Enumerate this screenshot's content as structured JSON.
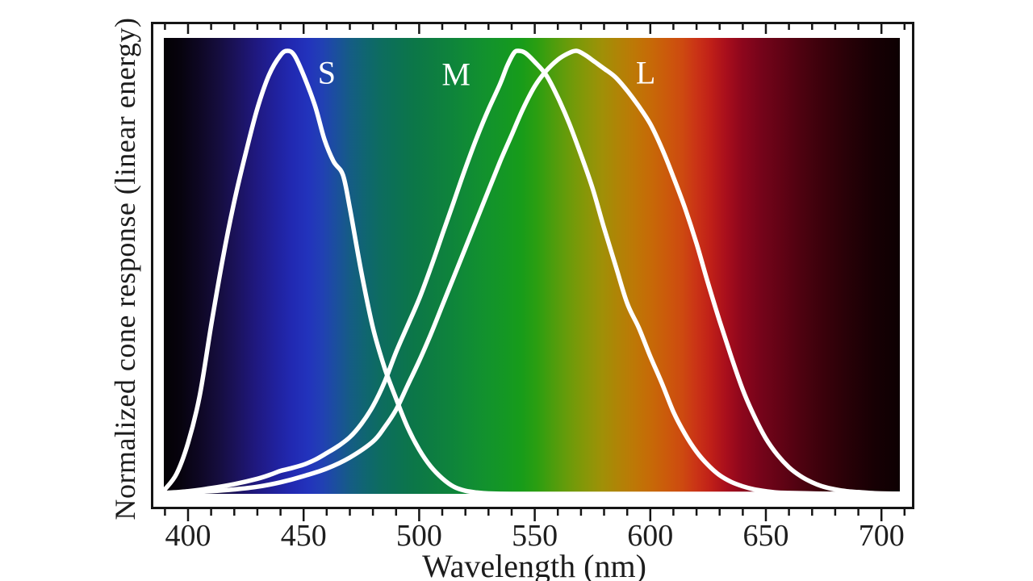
{
  "figure": {
    "background": "#ffffff",
    "frame_color": "#151515",
    "tick_color": "#151515",
    "curve_color": "#ffffff",
    "text_color": "#1c1c1c"
  },
  "chart_data": {
    "type": "line",
    "title": "",
    "xlabel": "Wavelength (nm)",
    "ylabel": "Normalized cone response (linear energy)",
    "xlim": [
      384,
      714
    ],
    "ylim": [
      0,
      1.1
    ],
    "grid": false,
    "legend_position": "inline-curve-labels",
    "spectrum_range_nm": [
      389,
      708
    ],
    "x_major_ticks": [
      400,
      450,
      500,
      550,
      600,
      650,
      700
    ],
    "x_minor_tick_step": 10,
    "x_minor_tick_range": [
      390,
      710
    ],
    "series": [
      {
        "name": "S",
        "points": [
          [
            390,
            0.01
          ],
          [
            395,
            0.045
          ],
          [
            400,
            0.115
          ],
          [
            405,
            0.22
          ],
          [
            410,
            0.38
          ],
          [
            415,
            0.53
          ],
          [
            420,
            0.66
          ],
          [
            425,
            0.77
          ],
          [
            430,
            0.87
          ],
          [
            435,
            0.945
          ],
          [
            440,
            0.99
          ],
          [
            443,
            1.0
          ],
          [
            446,
            0.99
          ],
          [
            450,
            0.945
          ],
          [
            455,
            0.875
          ],
          [
            459,
            0.8
          ],
          [
            463,
            0.75
          ],
          [
            467,
            0.72
          ],
          [
            470,
            0.645
          ],
          [
            475,
            0.5
          ],
          [
            480,
            0.375
          ],
          [
            485,
            0.285
          ],
          [
            490,
            0.215
          ],
          [
            495,
            0.15
          ],
          [
            500,
            0.1
          ],
          [
            505,
            0.062
          ],
          [
            510,
            0.035
          ],
          [
            515,
            0.016
          ],
          [
            520,
            0.007
          ],
          [
            525,
            0.003
          ],
          [
            530,
            0.001
          ],
          [
            540,
            0
          ],
          [
            560,
            0
          ],
          [
            580,
            0
          ],
          [
            600,
            0
          ],
          [
            620,
            0
          ],
          [
            640,
            0
          ],
          [
            660,
            0
          ],
          [
            680,
            0
          ],
          [
            700,
            0
          ],
          [
            710,
            0
          ]
        ]
      },
      {
        "name": "M",
        "points": [
          [
            390,
            0.002
          ],
          [
            400,
            0.006
          ],
          [
            410,
            0.013
          ],
          [
            420,
            0.022
          ],
          [
            430,
            0.034
          ],
          [
            436,
            0.044
          ],
          [
            440,
            0.052
          ],
          [
            444,
            0.057
          ],
          [
            450,
            0.066
          ],
          [
            455,
            0.077
          ],
          [
            460,
            0.092
          ],
          [
            465,
            0.108
          ],
          [
            470,
            0.128
          ],
          [
            475,
            0.158
          ],
          [
            480,
            0.198
          ],
          [
            485,
            0.252
          ],
          [
            490,
            0.32
          ],
          [
            495,
            0.38
          ],
          [
            500,
            0.44
          ],
          [
            505,
            0.51
          ],
          [
            510,
            0.585
          ],
          [
            515,
            0.66
          ],
          [
            520,
            0.735
          ],
          [
            525,
            0.805
          ],
          [
            530,
            0.868
          ],
          [
            535,
            0.925
          ],
          [
            538,
            0.965
          ],
          [
            541,
            0.995
          ],
          [
            543,
            1.0
          ],
          [
            546,
            0.995
          ],
          [
            550,
            0.975
          ],
          [
            555,
            0.945
          ],
          [
            560,
            0.895
          ],
          [
            565,
            0.835
          ],
          [
            570,
            0.765
          ],
          [
            575,
            0.69
          ],
          [
            580,
            0.6
          ],
          [
            585,
            0.515
          ],
          [
            590,
            0.43
          ],
          [
            595,
            0.375
          ],
          [
            600,
            0.31
          ],
          [
            605,
            0.25
          ],
          [
            610,
            0.185
          ],
          [
            615,
            0.135
          ],
          [
            620,
            0.095
          ],
          [
            625,
            0.065
          ],
          [
            630,
            0.042
          ],
          [
            635,
            0.027
          ],
          [
            640,
            0.017
          ],
          [
            645,
            0.01
          ],
          [
            650,
            0.006
          ],
          [
            655,
            0.003
          ],
          [
            660,
            0.002
          ],
          [
            670,
            0.001
          ],
          [
            680,
            0
          ],
          [
            695,
            0
          ],
          [
            710,
            0
          ]
        ]
      },
      {
        "name": "L",
        "points": [
          [
            390,
            0.001
          ],
          [
            400,
            0.003
          ],
          [
            410,
            0.006
          ],
          [
            420,
            0.01
          ],
          [
            430,
            0.016
          ],
          [
            440,
            0.026
          ],
          [
            450,
            0.04
          ],
          [
            460,
            0.057
          ],
          [
            470,
            0.082
          ],
          [
            480,
            0.118
          ],
          [
            485,
            0.15
          ],
          [
            490,
            0.19
          ],
          [
            495,
            0.245
          ],
          [
            500,
            0.3
          ],
          [
            505,
            0.36
          ],
          [
            510,
            0.425
          ],
          [
            515,
            0.49
          ],
          [
            520,
            0.555
          ],
          [
            525,
            0.62
          ],
          [
            530,
            0.685
          ],
          [
            535,
            0.75
          ],
          [
            540,
            0.81
          ],
          [
            545,
            0.87
          ],
          [
            550,
            0.92
          ],
          [
            555,
            0.955
          ],
          [
            560,
            0.98
          ],
          [
            564,
            0.993
          ],
          [
            568,
            1.0
          ],
          [
            572,
            0.99
          ],
          [
            576,
            0.975
          ],
          [
            580,
            0.96
          ],
          [
            585,
            0.94
          ],
          [
            590,
            0.91
          ],
          [
            595,
            0.875
          ],
          [
            600,
            0.835
          ],
          [
            605,
            0.78
          ],
          [
            610,
            0.715
          ],
          [
            615,
            0.645
          ],
          [
            620,
            0.565
          ],
          [
            625,
            0.475
          ],
          [
            630,
            0.39
          ],
          [
            635,
            0.31
          ],
          [
            640,
            0.235
          ],
          [
            645,
            0.175
          ],
          [
            650,
            0.125
          ],
          [
            655,
            0.088
          ],
          [
            660,
            0.06
          ],
          [
            665,
            0.04
          ],
          [
            670,
            0.026
          ],
          [
            675,
            0.016
          ],
          [
            680,
            0.01
          ],
          [
            685,
            0.006
          ],
          [
            690,
            0.004
          ],
          [
            695,
            0.002
          ],
          [
            700,
            0.001
          ],
          [
            710,
            0
          ]
        ]
      }
    ],
    "annotations": [
      {
        "text": "S",
        "wavelength": 460,
        "response": 0.951
      },
      {
        "text": "M",
        "wavelength": 516,
        "response": 0.947
      },
      {
        "text": "L",
        "wavelength": 598,
        "response": 0.95
      }
    ],
    "spectrum_gradient": [
      {
        "nm": 389,
        "color": "#030104"
      },
      {
        "nm": 397,
        "color": "#07030e"
      },
      {
        "nm": 405,
        "color": "#0e0724"
      },
      {
        "nm": 413,
        "color": "#150d3d"
      },
      {
        "nm": 421,
        "color": "#1b125c"
      },
      {
        "nm": 429,
        "color": "#1f187e"
      },
      {
        "nm": 437,
        "color": "#20209a"
      },
      {
        "nm": 445,
        "color": "#2129b2"
      },
      {
        "nm": 452,
        "color": "#2233bc"
      },
      {
        "nm": 458,
        "color": "#2140b4"
      },
      {
        "nm": 464,
        "color": "#1b4f9e"
      },
      {
        "nm": 470,
        "color": "#155c85"
      },
      {
        "nm": 477,
        "color": "#0f6670"
      },
      {
        "nm": 483,
        "color": "#0d6c60"
      },
      {
        "nm": 490,
        "color": "#0c7154"
      },
      {
        "nm": 497,
        "color": "#0c7649"
      },
      {
        "nm": 505,
        "color": "#0d7c42"
      },
      {
        "nm": 513,
        "color": "#0e833c"
      },
      {
        "nm": 521,
        "color": "#108b35"
      },
      {
        "nm": 529,
        "color": "#12922d"
      },
      {
        "nm": 537,
        "color": "#149724"
      },
      {
        "nm": 544,
        "color": "#179c1a"
      },
      {
        "nm": 551,
        "color": "#2b9e11"
      },
      {
        "nm": 558,
        "color": "#4d9d0d"
      },
      {
        "nm": 565,
        "color": "#6c9b0a"
      },
      {
        "nm": 572,
        "color": "#879708"
      },
      {
        "nm": 579,
        "color": "#9f9007"
      },
      {
        "nm": 586,
        "color": "#b08406"
      },
      {
        "nm": 593,
        "color": "#bd7806"
      },
      {
        "nm": 600,
        "color": "#c66a07"
      },
      {
        "nm": 607,
        "color": "#cb5a0b"
      },
      {
        "nm": 614,
        "color": "#cd4910"
      },
      {
        "nm": 620,
        "color": "#ca3316"
      },
      {
        "nm": 626,
        "color": "#c02018"
      },
      {
        "nm": 633,
        "color": "#a80e1c"
      },
      {
        "nm": 640,
        "color": "#8c061c"
      },
      {
        "nm": 648,
        "color": "#75041a"
      },
      {
        "nm": 656,
        "color": "#630315"
      },
      {
        "nm": 665,
        "color": "#4e0210"
      },
      {
        "nm": 675,
        "color": "#3a010b"
      },
      {
        "nm": 686,
        "color": "#270107"
      },
      {
        "nm": 697,
        "color": "#170004"
      },
      {
        "nm": 708,
        "color": "#0d0002"
      }
    ]
  }
}
